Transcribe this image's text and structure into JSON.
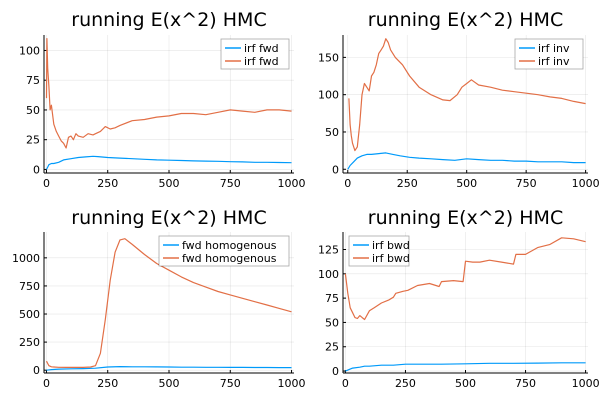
{
  "chart_data": [
    {
      "type": "line",
      "title": "running E(x^2) HMC",
      "xlim": [
        -10,
        1010
      ],
      "ylim": [
        -3,
        113
      ],
      "xticks": [
        0,
        250,
        500,
        750,
        1000
      ],
      "xtick_labels": [
        "0",
        "250",
        "500",
        "750",
        "1000"
      ],
      "yticks": [
        0,
        25,
        50,
        75,
        100
      ],
      "ytick_labels": [
        "0",
        "25",
        "50",
        "75",
        "100"
      ],
      "legend_position": "top-right",
      "series": [
        {
          "name": "irf fwd",
          "color": "#009AFA",
          "x": [
            0,
            5,
            10,
            20,
            30,
            50,
            70,
            100,
            130,
            160,
            190,
            210,
            250,
            300,
            350,
            400,
            450,
            500,
            550,
            600,
            650,
            700,
            750,
            800,
            850,
            900,
            950,
            1000
          ],
          "y": [
            0,
            2,
            4,
            5,
            5,
            6,
            8,
            9,
            10,
            10.5,
            11,
            10.8,
            10,
            9.5,
            9,
            8.5,
            8,
            7.8,
            7.5,
            7.2,
            7,
            6.8,
            6.5,
            6.3,
            6,
            6,
            5.8,
            5.7
          ]
        },
        {
          "name": "irf fwd",
          "color": "#E26F46",
          "x": [
            0,
            2,
            5,
            10,
            15,
            20,
            30,
            40,
            50,
            60,
            70,
            80,
            90,
            100,
            110,
            120,
            130,
            150,
            170,
            190,
            200,
            220,
            240,
            260,
            280,
            300,
            350,
            400,
            450,
            500,
            550,
            600,
            650,
            700,
            750,
            800,
            850,
            900,
            950,
            1000
          ],
          "y": [
            60,
            110,
            85,
            70,
            50,
            54,
            38,
            32,
            28,
            24,
            22,
            18,
            27,
            28,
            25,
            30,
            28,
            27,
            30,
            29,
            30,
            32,
            36,
            34,
            35,
            37,
            41,
            42,
            44,
            45,
            47,
            47,
            46,
            48,
            50,
            49,
            48,
            50,
            50,
            49
          ]
        }
      ]
    },
    {
      "type": "line",
      "title": "running E(x^2) HMC",
      "xlim": [
        -20,
        1010
      ],
      "ylim": [
        -5,
        180
      ],
      "xticks": [
        0,
        250,
        500,
        750,
        1000
      ],
      "xtick_labels": [
        "0",
        "250",
        "500",
        "750",
        "1000"
      ],
      "yticks": [
        0,
        50,
        100,
        150
      ],
      "ytick_labels": [
        "0",
        "50",
        "100",
        "150"
      ],
      "legend_position": "top-right",
      "series": [
        {
          "name": "irf inv",
          "color": "#009AFA",
          "x": [
            0,
            10,
            25,
            40,
            60,
            80,
            100,
            130,
            160,
            190,
            220,
            260,
            300,
            350,
            400,
            450,
            500,
            550,
            600,
            650,
            700,
            750,
            800,
            850,
            900,
            950,
            1000
          ],
          "y": [
            0,
            5,
            10,
            15,
            18,
            20,
            20,
            21,
            22,
            20,
            18,
            16,
            15,
            14,
            13,
            12,
            14,
            13,
            12,
            12,
            11,
            11,
            10,
            10,
            10,
            9,
            9
          ]
        },
        {
          "name": "irf inv",
          "color": "#E26F46",
          "x": [
            5,
            10,
            15,
            20,
            30,
            40,
            50,
            60,
            70,
            80,
            90,
            100,
            110,
            120,
            130,
            140,
            150,
            160,
            170,
            180,
            200,
            230,
            260,
            300,
            350,
            400,
            430,
            460,
            480,
            500,
            520,
            550,
            600,
            650,
            700,
            750,
            800,
            850,
            900,
            950,
            1000
          ],
          "y": [
            95,
            60,
            45,
            35,
            25,
            30,
            60,
            100,
            115,
            110,
            105,
            125,
            130,
            140,
            155,
            160,
            165,
            175,
            170,
            160,
            150,
            140,
            125,
            110,
            100,
            93,
            92,
            100,
            110,
            115,
            120,
            113,
            110,
            106,
            104,
            102,
            100,
            97,
            95,
            91,
            88
          ]
        }
      ]
    },
    {
      "type": "line",
      "title": "running E(x^2) HMC",
      "xlim": [
        -10,
        1010
      ],
      "ylim": [
        -25,
        1230
      ],
      "xticks": [
        0,
        250,
        500,
        750,
        1000
      ],
      "xtick_labels": [
        "0",
        "250",
        "500",
        "750",
        "1000"
      ],
      "yticks": [
        0,
        250,
        500,
        750,
        1000
      ],
      "ytick_labels": [
        "0",
        "250",
        "500",
        "750",
        "1000"
      ],
      "legend_position": "top-right",
      "series": [
        {
          "name": "fwd homogenous",
          "color": "#009AFA",
          "x": [
            0,
            20,
            50,
            100,
            150,
            200,
            250,
            300,
            350,
            400,
            450,
            500,
            550,
            600,
            650,
            700,
            750,
            800,
            850,
            900,
            950,
            1000
          ],
          "y": [
            0,
            5,
            10,
            12,
            14,
            18,
            28,
            32,
            30,
            30,
            29,
            28,
            27,
            27,
            26,
            26,
            25,
            25,
            24,
            24,
            23,
            23
          ]
        },
        {
          "name": "fwd homogenous",
          "color": "#E26F46",
          "x": [
            0,
            5,
            10,
            20,
            30,
            50,
            80,
            100,
            150,
            180,
            200,
            220,
            240,
            260,
            280,
            300,
            320,
            350,
            400,
            450,
            500,
            550,
            600,
            650,
            700,
            750,
            800,
            850,
            900,
            950,
            1000
          ],
          "y": [
            80,
            60,
            40,
            30,
            28,
            26,
            25,
            25,
            25,
            28,
            40,
            150,
            450,
            800,
            1050,
            1160,
            1170,
            1120,
            1030,
            950,
            890,
            830,
            780,
            740,
            700,
            670,
            640,
            610,
            580,
            550,
            520
          ]
        }
      ]
    },
    {
      "type": "line",
      "title": "running E(x^2) HMC",
      "xlim": [
        -10,
        1010
      ],
      "ylim": [
        -2,
        143
      ],
      "xticks": [
        0,
        250,
        500,
        750,
        1000
      ],
      "xtick_labels": [
        "0",
        "250",
        "500",
        "750",
        "1000"
      ],
      "yticks": [
        0,
        25,
        50,
        75,
        100,
        125
      ],
      "ytick_labels": [
        "0",
        "25",
        "50",
        "75",
        "100",
        "125"
      ],
      "legend_position": "top-left",
      "series": [
        {
          "name": "irf bwd",
          "color": "#009AFA",
          "x": [
            0,
            10,
            30,
            60,
            80,
            100,
            150,
            200,
            250,
            300,
            400,
            500,
            600,
            700,
            800,
            900,
            1000
          ],
          "y": [
            0,
            1,
            3,
            4,
            5,
            5,
            6,
            6,
            7,
            7,
            7,
            7.5,
            8,
            8,
            8.2,
            8.5,
            8.5
          ]
        },
        {
          "name": "irf bwd",
          "color": "#E26F46",
          "x": [
            0,
            10,
            20,
            30,
            40,
            50,
            60,
            70,
            80,
            100,
            120,
            150,
            180,
            200,
            210,
            240,
            260,
            300,
            350,
            390,
            400,
            450,
            490,
            500,
            530,
            560,
            600,
            650,
            700,
            710,
            750,
            800,
            850,
            900,
            950,
            1000
          ],
          "y": [
            100,
            80,
            65,
            60,
            55,
            54,
            57,
            55,
            53,
            62,
            65,
            70,
            73,
            76,
            80,
            82,
            83,
            88,
            90,
            87,
            92,
            93,
            92,
            113,
            112,
            112,
            114,
            112,
            110,
            120,
            120,
            127,
            130,
            137,
            136,
            133
          ]
        }
      ]
    }
  ]
}
